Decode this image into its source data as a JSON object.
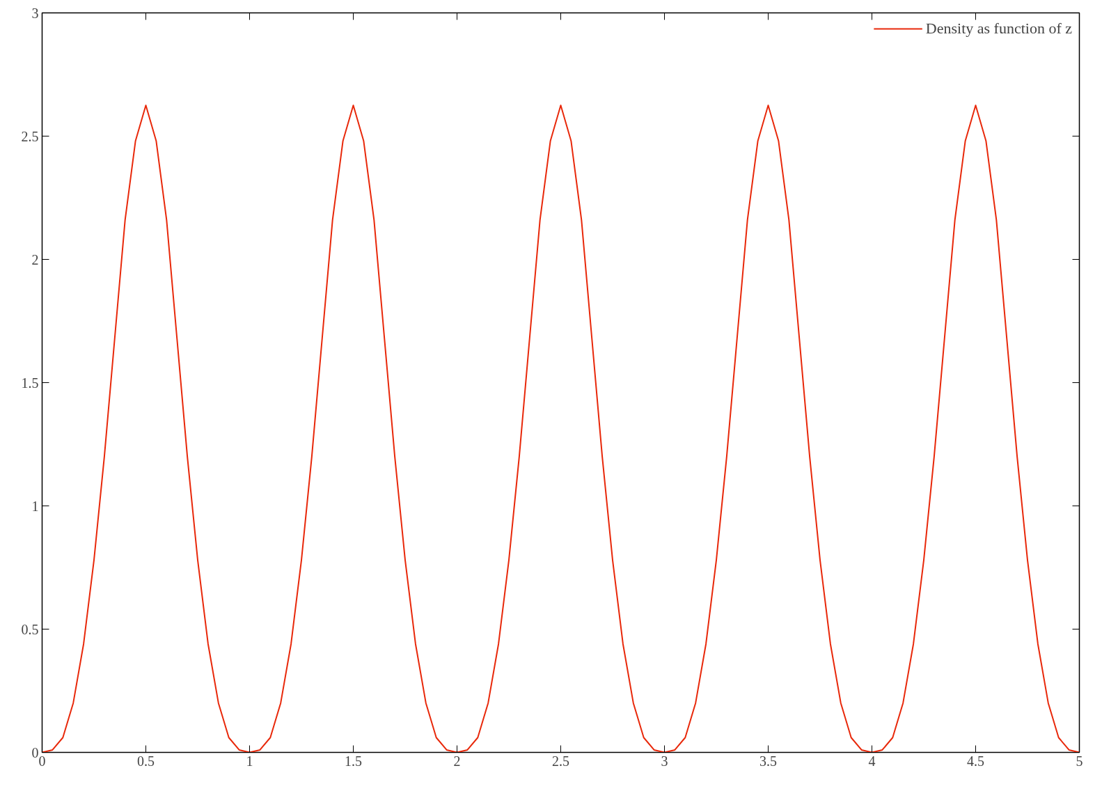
{
  "chart_data": {
    "type": "line",
    "x": [
      0,
      0.05,
      0.1,
      0.15,
      0.2,
      0.25,
      0.3,
      0.35,
      0.4,
      0.45,
      0.5,
      0.55,
      0.6,
      0.65,
      0.7,
      0.75,
      0.8,
      0.85,
      0.9,
      0.95,
      1,
      1.05,
      1.1,
      1.15,
      1.2,
      1.25,
      1.3,
      1.35,
      1.4,
      1.45,
      1.5,
      1.55,
      1.6,
      1.65,
      1.7,
      1.75,
      1.8,
      1.85,
      1.9,
      1.95,
      2,
      2.05,
      2.1,
      2.15,
      2.2,
      2.25,
      2.3,
      2.35,
      2.4,
      2.45,
      2.5,
      2.55,
      2.6,
      2.65,
      2.7,
      2.75,
      2.8,
      2.85,
      2.9,
      2.95,
      3,
      3.05,
      3.1,
      3.15,
      3.2,
      3.25,
      3.3,
      3.35,
      3.4,
      3.45,
      3.5,
      3.55,
      3.6,
      3.65,
      3.7,
      3.75,
      3.8,
      3.85,
      3.9,
      3.95,
      4,
      4.05,
      4.1,
      4.15,
      4.2,
      4.25,
      4.3,
      4.35,
      4.4,
      4.45,
      4.5,
      4.55,
      4.6,
      4.65,
      4.7,
      4.75,
      4.8,
      4.85,
      4.9,
      4.95,
      5
    ],
    "series": [
      {
        "name": "Density as function of z",
        "color": "#e8280a",
        "values": [
          0,
          0.01,
          0.06,
          0.2,
          0.44,
          0.78,
          1.2,
          1.68,
          2.16,
          2.48,
          2.625,
          2.48,
          2.16,
          1.68,
          1.2,
          0.78,
          0.44,
          0.2,
          0.06,
          0.01,
          0,
          0.01,
          0.06,
          0.2,
          0.44,
          0.78,
          1.2,
          1.68,
          2.16,
          2.48,
          2.625,
          2.48,
          2.16,
          1.68,
          1.2,
          0.78,
          0.44,
          0.2,
          0.06,
          0.01,
          0,
          0.01,
          0.06,
          0.2,
          0.44,
          0.78,
          1.2,
          1.68,
          2.16,
          2.48,
          2.625,
          2.48,
          2.16,
          1.68,
          1.2,
          0.78,
          0.44,
          0.2,
          0.06,
          0.01,
          0,
          0.01,
          0.06,
          0.2,
          0.44,
          0.78,
          1.2,
          1.68,
          2.16,
          2.48,
          2.625,
          2.48,
          2.16,
          1.68,
          1.2,
          0.78,
          0.44,
          0.2,
          0.06,
          0.01,
          0,
          0.01,
          0.06,
          0.2,
          0.44,
          0.78,
          1.2,
          1.68,
          2.16,
          2.48,
          2.625,
          2.48,
          2.16,
          1.68,
          1.2,
          0.78,
          0.44,
          0.2,
          0.06,
          0.01,
          0
        ]
      }
    ],
    "xlim": [
      0,
      5
    ],
    "xticks": [
      0,
      0.5,
      1,
      1.5,
      2,
      2.5,
      3,
      3.5,
      4,
      4.5,
      5
    ],
    "ylim": [
      0,
      3
    ],
    "yticks": [
      0,
      0.5,
      1,
      1.5,
      2,
      2.5,
      3
    ],
    "grid": false,
    "legend": "top right",
    "marker": "none",
    "line_style": "solid"
  }
}
